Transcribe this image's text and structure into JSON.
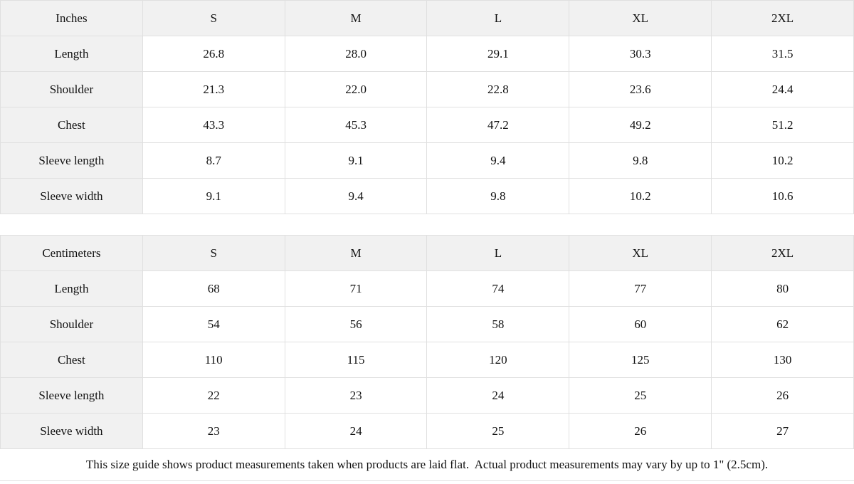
{
  "colors": {
    "header_bg": "#f1f1f1",
    "row_label_bg": "#f1f1f1",
    "cell_bg": "#ffffff",
    "border": "#e0e0e0",
    "text": "#111111"
  },
  "size_guide": {
    "tables": [
      {
        "unit_label": "Inches",
        "columns": [
          "S",
          "M",
          "L",
          "XL",
          "2XL"
        ],
        "rows": [
          {
            "label": "Length",
            "values": [
              "26.8",
              "28.0",
              "29.1",
              "30.3",
              "31.5"
            ]
          },
          {
            "label": "Shoulder",
            "values": [
              "21.3",
              "22.0",
              "22.8",
              "23.6",
              "24.4"
            ]
          },
          {
            "label": "Chest",
            "values": [
              "43.3",
              "45.3",
              "47.2",
              "49.2",
              "51.2"
            ]
          },
          {
            "label": "Sleeve length",
            "values": [
              "8.7",
              "9.1",
              "9.4",
              "9.8",
              "10.2"
            ]
          },
          {
            "label": "Sleeve width",
            "values": [
              "9.1",
              "9.4",
              "9.8",
              "10.2",
              "10.6"
            ]
          }
        ]
      },
      {
        "unit_label": "Centimeters",
        "columns": [
          "S",
          "M",
          "L",
          "XL",
          "2XL"
        ],
        "rows": [
          {
            "label": "Length",
            "values": [
              "68",
              "71",
              "74",
              "77",
              "80"
            ]
          },
          {
            "label": "Shoulder",
            "values": [
              "54",
              "56",
              "58",
              "60",
              "62"
            ]
          },
          {
            "label": "Chest",
            "values": [
              "110",
              "115",
              "120",
              "125",
              "130"
            ]
          },
          {
            "label": "Sleeve length",
            "values": [
              "22",
              "23",
              "24",
              "25",
              "26"
            ]
          },
          {
            "label": "Sleeve width",
            "values": [
              "23",
              "24",
              "25",
              "26",
              "27"
            ]
          }
        ]
      }
    ],
    "footnote": "This size guide shows product measurements taken when products are laid flat.  Actual product measurements may vary by up to 1\" (2.5cm)."
  }
}
